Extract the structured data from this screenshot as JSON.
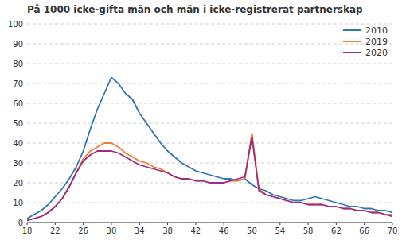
{
  "chart_data": {
    "type": "line",
    "title": "På 1000 icke-gifta män och män i icke-registrerat partnerskap",
    "x": [
      18,
      19,
      20,
      21,
      22,
      23,
      24,
      25,
      26,
      27,
      28,
      29,
      30,
      31,
      32,
      33,
      34,
      35,
      36,
      37,
      38,
      39,
      40,
      41,
      42,
      43,
      44,
      45,
      46,
      47,
      48,
      49,
      50,
      51,
      52,
      53,
      54,
      55,
      56,
      57,
      58,
      59,
      60,
      61,
      62,
      63,
      64,
      65,
      66,
      67,
      68,
      69,
      70
    ],
    "series": [
      {
        "name": "2010",
        "color": "#2e75b6",
        "values": [
          2,
          4,
          6,
          9,
          13,
          17,
          22,
          28,
          36,
          47,
          57,
          65,
          73,
          70,
          65,
          62,
          55,
          50,
          45,
          40,
          36,
          33,
          30,
          28,
          26,
          25,
          24,
          23,
          22,
          22,
          21,
          22,
          19,
          17,
          16,
          14,
          13,
          12,
          11,
          11,
          12,
          13,
          12,
          11,
          10,
          9,
          8,
          8,
          7,
          7,
          6,
          6,
          5
        ]
      },
      {
        "name": "2019",
        "color": "#ed7d31",
        "values": [
          1,
          2,
          3,
          5,
          8,
          12,
          18,
          25,
          32,
          36,
          38,
          40,
          40,
          38,
          35,
          33,
          31,
          30,
          28,
          27,
          25,
          23,
          22,
          22,
          21,
          21,
          20,
          20,
          20,
          21,
          21,
          22,
          45,
          17,
          14,
          13,
          12,
          11,
          10,
          10,
          9,
          9,
          9,
          8,
          8,
          7,
          7,
          6,
          6,
          5,
          5,
          4,
          4
        ]
      },
      {
        "name": "2020",
        "color": "#9b2d85",
        "values": [
          1,
          2,
          3,
          5,
          8,
          12,
          18,
          25,
          31,
          34,
          36,
          36,
          36,
          35,
          33,
          31,
          29,
          28,
          27,
          26,
          25,
          23,
          22,
          22,
          21,
          21,
          20,
          20,
          20,
          21,
          22,
          23,
          43,
          16,
          14,
          13,
          12,
          11,
          10,
          10,
          9,
          9,
          9,
          8,
          8,
          7,
          7,
          6,
          6,
          5,
          5,
          4,
          3
        ]
      }
    ],
    "xlim": [
      18,
      70
    ],
    "ylim": [
      0,
      100
    ],
    "xticks": [
      18,
      22,
      26,
      30,
      34,
      38,
      42,
      46,
      50,
      54,
      58,
      62,
      66,
      70
    ],
    "yticks": [
      0,
      10,
      20,
      30,
      40,
      50,
      60,
      70,
      80,
      90,
      100
    ],
    "grid": true,
    "legend": "upper-right"
  }
}
